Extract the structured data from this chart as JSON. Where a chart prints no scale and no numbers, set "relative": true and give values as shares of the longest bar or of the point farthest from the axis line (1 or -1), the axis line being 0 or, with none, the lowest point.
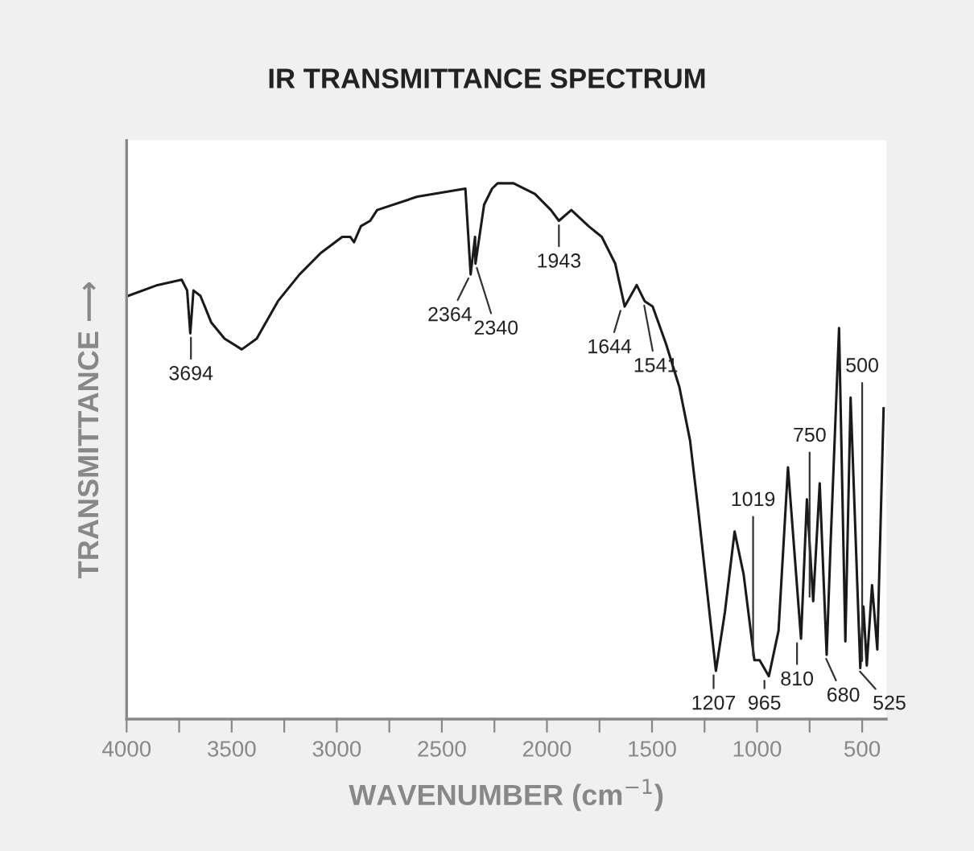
{
  "chart_data": {
    "type": "line",
    "title": "IR TRANSMITTANCE SPECTRUM",
    "xlabel": "WAVENUMBER (cm$^{−1}$)",
    "ylabel": "TRANSMITTANCE ⟶",
    "relative": true,
    "xlim": [
      4000,
      385
    ],
    "xticks": [
      4000,
      {
        "value": 3750,
        "label": null
      },
      3500,
      {
        "value": 3250,
        "label": null
      },
      3000,
      {
        "value": 2750,
        "label": null
      },
      2500,
      {
        "value": 2250,
        "label": null
      },
      2000,
      {
        "value": 1750,
        "label": null
      },
      1500,
      {
        "value": 1250,
        "label": null
      },
      1000,
      {
        "value": 750,
        "label": null
      },
      500
    ],
    "tick_labels": "x",
    "grid": false,
    "marker": "none",
    "line_style": "solid",
    "series": [
      {
        "color": "#1a1a1a",
        "x": [
          3992,
          3853,
          3738,
          3712,
          3697,
          3682,
          3649,
          3597,
          3534,
          3452,
          3381,
          3280,
          3177,
          3076,
          2974,
          2936,
          2918,
          2885,
          2841,
          2808,
          2617,
          2388,
          2363,
          2342,
          2340,
          2299,
          2261,
          2235,
          2159,
          2057,
          1981,
          1943,
          1884,
          1802,
          1739,
          1675,
          1630,
          1573,
          1535,
          1497,
          1433,
          1370,
          1319,
          1280,
          1255,
          1196,
          1153,
          1107,
          1064,
          1013,
          988,
          944,
          898,
          853,
          791,
          763,
          733,
          702,
          669,
          650,
          610,
          580,
          555,
          509,
          494,
          478,
          453,
          428,
          398
        ],
        "values": [
          0.79,
          0.81,
          0.82,
          0.8,
          0.72,
          0.8,
          0.79,
          0.74,
          0.71,
          0.69,
          0.71,
          0.78,
          0.83,
          0.87,
          0.9,
          0.9,
          0.89,
          0.92,
          0.93,
          0.95,
          0.975,
          0.99,
          0.83,
          0.9,
          0.85,
          0.96,
          0.99,
          1.0,
          1.0,
          0.98,
          0.95,
          0.93,
          0.95,
          0.92,
          0.9,
          0.85,
          0.77,
          0.81,
          0.78,
          0.77,
          0.7,
          0.62,
          0.52,
          0.39,
          0.3,
          0.09,
          0.2,
          0.35,
          0.27,
          0.11,
          0.11,
          0.08,
          0.165,
          0.47,
          0.15,
          0.41,
          0.22,
          0.44,
          0.12,
          0.33,
          0.73,
          0.145,
          0.6,
          0.095,
          0.21,
          0.1,
          0.25,
          0.13,
          0.58
        ]
      }
    ],
    "annotations": [
      {
        "text": "3694",
        "x": 3694,
        "y": 0.72
      },
      {
        "text": "2364",
        "x": 2364,
        "y": 0.83
      },
      {
        "text": "2340",
        "x": 2340,
        "y": 0.85
      },
      {
        "text": "1943",
        "x": 1943,
        "y": 0.93
      },
      {
        "text": "1644",
        "x": 1644,
        "y": 0.77
      },
      {
        "text": "1541",
        "x": 1541,
        "y": 0.78
      },
      {
        "text": "1207",
        "x": 1207,
        "y": 0.09
      },
      {
        "text": "1019",
        "x": 1019,
        "y": 0.11
      },
      {
        "text": "965",
        "x": 965,
        "y": 0.08
      },
      {
        "text": "810",
        "x": 810,
        "y": 0.15
      },
      {
        "text": "750",
        "x": 750,
        "y": 0.22
      },
      {
        "text": "680",
        "x": 680,
        "y": 0.12
      },
      {
        "text": "525",
        "x": 525,
        "y": 0.095
      },
      {
        "text": "500",
        "x": 500,
        "y": 0.1
      }
    ]
  }
}
